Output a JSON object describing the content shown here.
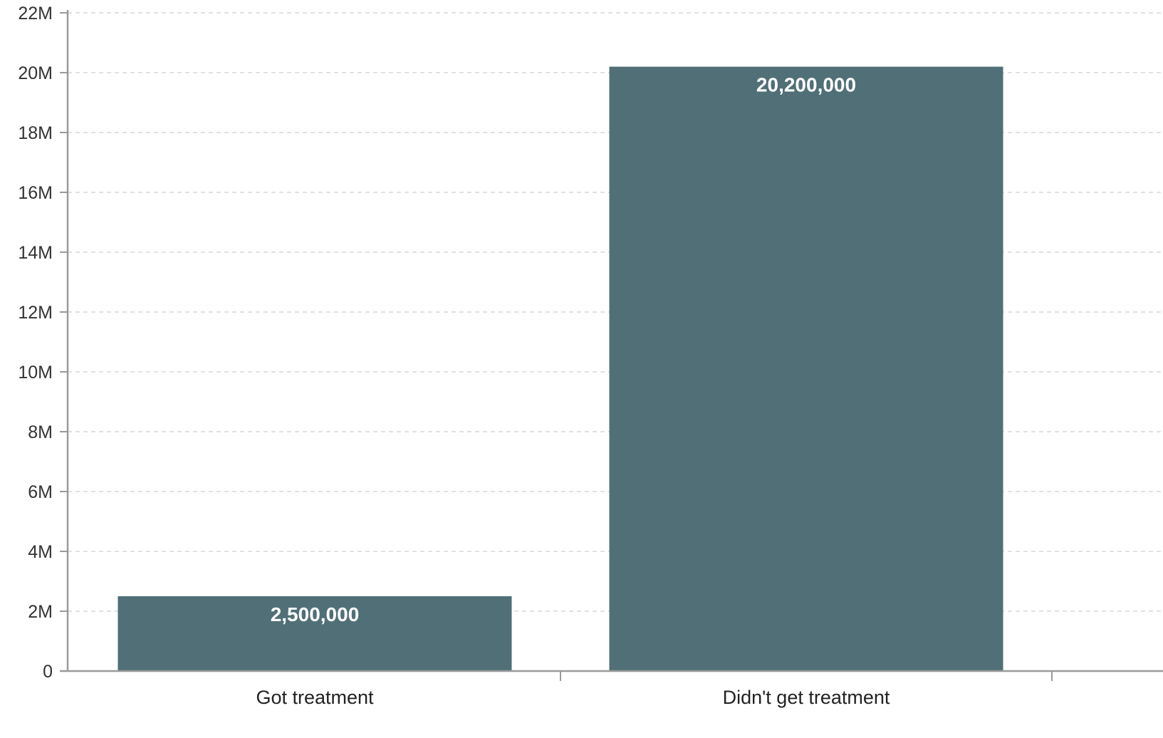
{
  "chart_data": {
    "type": "bar",
    "title": "",
    "xlabel": "",
    "ylabel": "",
    "categories": [
      "Got treatment",
      "Didn't get treatment"
    ],
    "values": [
      2500000,
      20200000
    ],
    "data_labels": [
      "2,500,000",
      "20,200,000"
    ],
    "ylim": [
      0,
      22000000
    ],
    "y_ticks": [
      0,
      2000000,
      4000000,
      6000000,
      8000000,
      10000000,
      12000000,
      14000000,
      16000000,
      18000000,
      20000000,
      22000000
    ],
    "y_tick_labels": [
      "0",
      "2M",
      "4M",
      "6M",
      "8M",
      "10M",
      "12M",
      "14M",
      "16M",
      "18M",
      "20M",
      "22M"
    ],
    "grid": true,
    "legend": "none",
    "colors": {
      "bar": "#506f76",
      "axis": "#9a9a9a",
      "grid": "#cfcfcf"
    }
  }
}
